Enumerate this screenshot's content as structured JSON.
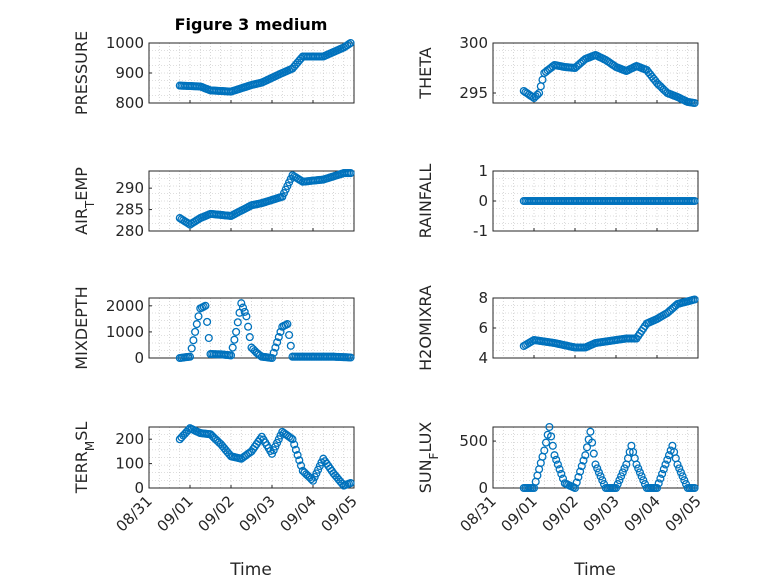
{
  "figure": {
    "title": "Figure 3 medium",
    "xlabel": "Time"
  },
  "x_tick_labels": [
    "08/31",
    "09/01",
    "09/02",
    "09/03",
    "09/04",
    "09/05"
  ],
  "colors": {
    "marker": "#0072BD",
    "axis": "#262626",
    "grid": "#bdbdbd"
  },
  "chart_data": [
    {
      "type": "scatter",
      "ylabel": "PRESSURE",
      "ylabel_sub": "",
      "ylabel_post": "",
      "ylim": [
        800,
        1000
      ],
      "yticks": [
        800,
        900,
        1000
      ],
      "ytick_labels": [
        "800",
        "900",
        "1000"
      ],
      "grid": true,
      "marker": "open-circle",
      "x": [
        "08/31 18:00",
        "09/01 06:00",
        "09/01 12:00",
        "09/02 00:00",
        "09/02 12:00",
        "09/02 18:00",
        "09/03 06:00",
        "09/03 12:00",
        "09/03 18:00",
        "09/04 06:00",
        "09/04 18:00",
        "09/04 22:00"
      ],
      "y": [
        858,
        855,
        842,
        838,
        860,
        868,
        900,
        915,
        955,
        955,
        985,
        1000
      ]
    },
    {
      "type": "scatter",
      "ylabel": "THETA",
      "ylabel_sub": "",
      "ylabel_post": "",
      "ylim": [
        294,
        300
      ],
      "yticks": [
        295,
        300
      ],
      "ytick_labels": [
        "295",
        "300"
      ],
      "grid": true,
      "marker": "open-circle",
      "x": [
        "08/31 18:00",
        "09/01 00:00",
        "09/01 03:00",
        "09/01 06:00",
        "09/01 12:00",
        "09/01 18:00",
        "09/02 00:00",
        "09/02 06:00",
        "09/02 12:00",
        "09/02 18:00",
        "09/03 00:00",
        "09/03 06:00",
        "09/03 12:00",
        "09/03 18:00",
        "09/04 00:00",
        "09/04 06:00",
        "09/04 12:00",
        "09/04 18:00",
        "09/04 22:00"
      ],
      "y": [
        295.2,
        294.5,
        295.0,
        297.0,
        297.8,
        297.6,
        297.5,
        298.4,
        298.8,
        298.3,
        297.6,
        297.2,
        297.7,
        297.3,
        296.0,
        295.0,
        294.6,
        294.1,
        294.0
      ]
    },
    {
      "type": "scatter",
      "ylabel": "AIR",
      "ylabel_sub": "T",
      "ylabel_post": "EMP",
      "ylim": [
        280,
        294
      ],
      "yticks": [
        280,
        285,
        290
      ],
      "ytick_labels": [
        "280",
        "285",
        "290"
      ],
      "grid": true,
      "marker": "open-circle",
      "x": [
        "08/31 18:00",
        "09/01 00:00",
        "09/01 06:00",
        "09/01 12:00",
        "09/02 00:00",
        "09/02 12:00",
        "09/02 18:00",
        "09/03 06:00",
        "09/03 12:00",
        "09/03 18:00",
        "09/04 06:00",
        "09/04 18:00",
        "09/04 22:00"
      ],
      "y": [
        283,
        281.5,
        283,
        284,
        283.5,
        286,
        286.5,
        288,
        293,
        291.5,
        292,
        293.5,
        293.5
      ]
    },
    {
      "type": "scatter",
      "ylabel": "RAINFALL",
      "ylabel_sub": "",
      "ylabel_post": "",
      "ylim": [
        -1,
        1
      ],
      "yticks": [
        -1,
        0,
        1
      ],
      "ytick_labels": [
        "-1",
        "0",
        "1"
      ],
      "grid": true,
      "marker": "open-circle",
      "x": [
        "08/31 18:00",
        "09/04 22:00"
      ],
      "y": [
        0,
        0
      ]
    },
    {
      "type": "scatter",
      "ylabel": "MIXDEPTH",
      "ylabel_sub": "",
      "ylabel_post": "",
      "ylim": [
        0,
        2300
      ],
      "yticks": [
        0,
        1000,
        2000
      ],
      "ytick_labels": [
        "0",
        "1000",
        "2000"
      ],
      "grid": true,
      "marker": "open-circle",
      "x": [
        "08/31 18:00",
        "09/01 00:00",
        "09/01 03:00",
        "09/01 06:00",
        "09/01 09:00",
        "09/01 12:00",
        "09/01 18:00",
        "09/02 00:00",
        "09/02 03:00",
        "09/02 06:00",
        "09/02 09:00",
        "09/02 12:00",
        "09/02 15:00",
        "09/02 18:00",
        "09/03 00:00",
        "09/03 03:00",
        "09/03 06:00",
        "09/03 09:00",
        "09/03 12:00",
        "09/03 18:00",
        "09/04 00:00",
        "09/04 12:00",
        "09/04 22:00"
      ],
      "y": [
        0,
        50,
        1000,
        1900,
        2000,
        150,
        140,
        100,
        1000,
        2100,
        1600,
        400,
        200,
        50,
        0,
        600,
        1200,
        1300,
        50,
        50,
        50,
        50,
        20
      ]
    },
    {
      "type": "scatter",
      "ylabel": "H2OMIXRA",
      "ylabel_sub": "",
      "ylabel_post": "",
      "ylim": [
        4,
        8
      ],
      "yticks": [
        4,
        6,
        8
      ],
      "ytick_labels": [
        "4",
        "6",
        "8"
      ],
      "grid": true,
      "marker": "open-circle",
      "x": [
        "08/31 18:00",
        "09/01 00:00",
        "09/01 12:00",
        "09/02 00:00",
        "09/02 06:00",
        "09/02 12:00",
        "09/03 00:00",
        "09/03 06:00",
        "09/03 12:00",
        "09/03 18:00",
        "09/04 00:00",
        "09/04 06:00",
        "09/04 12:00",
        "09/04 22:00"
      ],
      "y": [
        4.8,
        5.2,
        5.0,
        4.7,
        4.7,
        5.0,
        5.2,
        5.3,
        5.3,
        6.3,
        6.6,
        7.0,
        7.6,
        7.9
      ]
    },
    {
      "type": "scatter",
      "ylabel": "TERR",
      "ylabel_sub": "M",
      "ylabel_post": "SL",
      "ylim": [
        0,
        250
      ],
      "yticks": [
        0,
        100,
        200
      ],
      "ytick_labels": [
        "0",
        "100",
        "200"
      ],
      "grid": true,
      "marker": "open-circle",
      "x": [
        "08/31 18:00",
        "09/01 00:00",
        "09/01 06:00",
        "09/01 12:00",
        "09/01 18:00",
        "09/02 00:00",
        "09/02 06:00",
        "09/02 12:00",
        "09/02 18:00",
        "09/03 00:00",
        "09/03 06:00",
        "09/03 12:00",
        "09/03 18:00",
        "09/04 00:00",
        "09/04 06:00",
        "09/04 12:00",
        "09/04 18:00",
        "09/04 22:00"
      ],
      "y": [
        200,
        245,
        225,
        220,
        180,
        130,
        120,
        150,
        210,
        140,
        230,
        200,
        70,
        30,
        120,
        60,
        10,
        20
      ]
    },
    {
      "type": "scatter",
      "ylabel": "SUN",
      "ylabel_sub": "F",
      "ylabel_post": "LUX",
      "ylim": [
        0,
        650
      ],
      "yticks": [
        0,
        500
      ],
      "ytick_labels": [
        "0",
        "500"
      ],
      "grid": true,
      "marker": "open-circle",
      "x": [
        "08/31 18:00",
        "09/01 00:00",
        "09/01 06:00",
        "09/01 09:00",
        "09/01 12:00",
        "09/01 18:00",
        "09/02 00:00",
        "09/02 06:00",
        "09/02 09:00",
        "09/02 12:00",
        "09/02 18:00",
        "09/03 00:00",
        "09/03 06:00",
        "09/03 09:00",
        "09/03 12:00",
        "09/03 18:00",
        "09/04 00:00",
        "09/04 06:00",
        "09/04 09:00",
        "09/04 12:00",
        "09/04 18:00",
        "09/04 22:00"
      ],
      "y": [
        0,
        0,
        400,
        650,
        350,
        50,
        0,
        350,
        600,
        250,
        0,
        0,
        250,
        450,
        250,
        0,
        0,
        300,
        450,
        250,
        0,
        0
      ]
    }
  ]
}
